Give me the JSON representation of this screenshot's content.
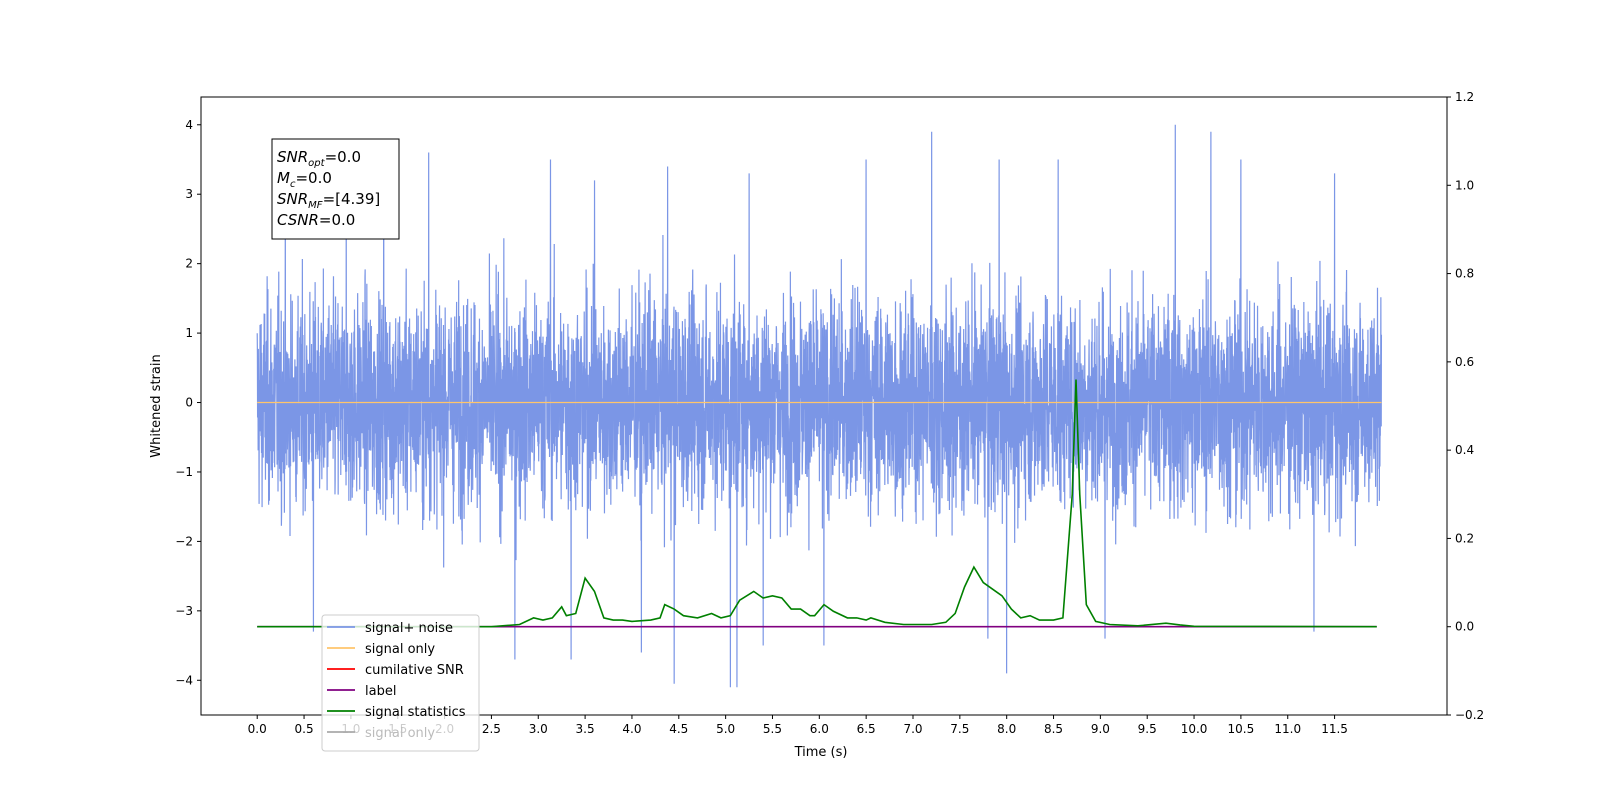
{
  "chart_data": {
    "type": "line",
    "xlabel": "Time (s)",
    "ylabel": "Whitened strain",
    "xlim": [
      -0.6,
      12.7
    ],
    "ylim": [
      -4.5,
      4.4
    ],
    "y2lim": [
      -0.2,
      1.2
    ],
    "x_ticks": [
      0.0,
      0.5,
      1.0,
      1.5,
      2.0,
      2.5,
      3.0,
      3.5,
      4.0,
      4.5,
      5.0,
      5.5,
      6.0,
      6.5,
      7.0,
      7.5,
      8.0,
      8.5,
      9.0,
      9.5,
      10.0,
      10.5,
      11.0,
      11.5
    ],
    "x_tick_labels": [
      "0.0",
      "0.5",
      "1.0",
      "1.5",
      "2.0",
      "2.5",
      "3.0",
      "3.5",
      "4.0",
      "4.5",
      "5.0",
      "5.5",
      "6.0",
      "6.5",
      "7.0",
      "7.5",
      "8.0",
      "8.5",
      "9.0",
      "9.5",
      "10.0",
      "10.5",
      "11.0",
      "11.5"
    ],
    "y_ticks": [
      4,
      3,
      2,
      1,
      0,
      -1,
      -2,
      -3,
      -4
    ],
    "y_tick_labels": [
      "4",
      "3",
      "2",
      "1",
      "0",
      "−1",
      "−2",
      "−3",
      "−4"
    ],
    "y2_ticks": [
      1.2,
      1.0,
      0.8,
      0.6,
      0.4,
      0.2,
      0.0,
      -0.2
    ],
    "y2_tick_labels": [
      "1.2",
      "1.0",
      "0.8",
      "0.6",
      "0.4",
      "0.2",
      "0.0",
      "−0.2"
    ],
    "grid": false,
    "legend_position": "lower-left",
    "annotation": [
      {
        "main": "SNR",
        "sub": "opt",
        "rest": "=0.0"
      },
      {
        "main": "M",
        "sub": "c",
        "rest": "=0.0"
      },
      {
        "main": "SNR",
        "sub": "MF",
        "rest": "=[4.39]"
      },
      {
        "main": "CSNR",
        "sub": "",
        "rest": "=0.0"
      }
    ],
    "series": [
      {
        "name": "signal+ noise",
        "axis": "left",
        "color": "#7b96e6",
        "kind": "noise",
        "x_range": [
          0.0,
          12.0
        ],
        "envelope_typical": 2.8,
        "peaks": [
          {
            "x": 0.3,
            "y": 2.9
          },
          {
            "x": 0.95,
            "y": 3.1
          },
          {
            "x": 1.35,
            "y": 3.6
          },
          {
            "x": 1.83,
            "y": 3.6
          },
          {
            "x": 2.75,
            "y": 3.5
          },
          {
            "x": 3.13,
            "y": 3.5
          },
          {
            "x": 3.6,
            "y": 3.2
          },
          {
            "x": 4.38,
            "y": 3.4
          },
          {
            "x": 5.25,
            "y": 3.3
          },
          {
            "x": 6.5,
            "y": 3.5
          },
          {
            "x": 7.2,
            "y": 3.9
          },
          {
            "x": 7.92,
            "y": 3.5
          },
          {
            "x": 8.55,
            "y": 3.5
          },
          {
            "x": 9.8,
            "y": 4.0
          },
          {
            "x": 10.18,
            "y": 3.9
          },
          {
            "x": 10.5,
            "y": 3.5
          },
          {
            "x": 11.5,
            "y": 3.3
          }
        ],
        "troughs": [
          {
            "x": 0.6,
            "y": -3.3
          },
          {
            "x": 2.75,
            "y": -3.7
          },
          {
            "x": 3.35,
            "y": -3.7
          },
          {
            "x": 4.1,
            "y": -3.6
          },
          {
            "x": 4.45,
            "y": -4.05
          },
          {
            "x": 5.05,
            "y": -4.1
          },
          {
            "x": 5.12,
            "y": -4.1
          },
          {
            "x": 5.4,
            "y": -3.5
          },
          {
            "x": 6.05,
            "y": -3.5
          },
          {
            "x": 7.8,
            "y": -3.4
          },
          {
            "x": 8.0,
            "y": -3.9
          },
          {
            "x": 9.05,
            "y": -3.4
          },
          {
            "x": 11.28,
            "y": -3.3
          }
        ]
      },
      {
        "name": "signal only",
        "axis": "left",
        "color": "#ffc56b",
        "points": [
          [
            0.0,
            0.0
          ],
          [
            12.0,
            0.0
          ]
        ]
      },
      {
        "name": "cumilative SNR",
        "axis": "right",
        "color": "#ff0000",
        "points": []
      },
      {
        "name": "label",
        "axis": "right",
        "color": "#800080",
        "points": [
          [
            0.0,
            0.0
          ],
          [
            11.95,
            0.0
          ]
        ]
      },
      {
        "name": "signal statistics",
        "axis": "right",
        "color": "#008000",
        "points": [
          [
            0.0,
            0.0
          ],
          [
            2.5,
            0.0
          ],
          [
            2.8,
            0.005
          ],
          [
            2.95,
            0.02
          ],
          [
            3.05,
            0.015
          ],
          [
            3.15,
            0.02
          ],
          [
            3.25,
            0.045
          ],
          [
            3.3,
            0.025
          ],
          [
            3.4,
            0.03
          ],
          [
            3.5,
            0.11
          ],
          [
            3.6,
            0.08
          ],
          [
            3.7,
            0.02
          ],
          [
            3.8,
            0.015
          ],
          [
            3.9,
            0.015
          ],
          [
            4.0,
            0.012
          ],
          [
            4.2,
            0.015
          ],
          [
            4.3,
            0.02
          ],
          [
            4.35,
            0.05
          ],
          [
            4.45,
            0.04
          ],
          [
            4.55,
            0.025
          ],
          [
            4.7,
            0.02
          ],
          [
            4.85,
            0.03
          ],
          [
            4.95,
            0.02
          ],
          [
            5.05,
            0.025
          ],
          [
            5.15,
            0.06
          ],
          [
            5.3,
            0.08
          ],
          [
            5.4,
            0.065
          ],
          [
            5.5,
            0.07
          ],
          [
            5.6,
            0.065
          ],
          [
            5.7,
            0.04
          ],
          [
            5.8,
            0.04
          ],
          [
            5.9,
            0.025
          ],
          [
            5.95,
            0.025
          ],
          [
            6.05,
            0.05
          ],
          [
            6.15,
            0.035
          ],
          [
            6.3,
            0.02
          ],
          [
            6.4,
            0.02
          ],
          [
            6.5,
            0.015
          ],
          [
            6.55,
            0.02
          ],
          [
            6.7,
            0.01
          ],
          [
            6.9,
            0.005
          ],
          [
            7.2,
            0.005
          ],
          [
            7.35,
            0.01
          ],
          [
            7.45,
            0.03
          ],
          [
            7.55,
            0.09
          ],
          [
            7.65,
            0.135
          ],
          [
            7.75,
            0.1
          ],
          [
            7.85,
            0.085
          ],
          [
            7.95,
            0.07
          ],
          [
            8.05,
            0.04
          ],
          [
            8.15,
            0.02
          ],
          [
            8.25,
            0.025
          ],
          [
            8.35,
            0.015
          ],
          [
            8.5,
            0.015
          ],
          [
            8.6,
            0.02
          ],
          [
            8.7,
            0.3
          ],
          [
            8.74,
            0.56
          ],
          [
            8.78,
            0.3
          ],
          [
            8.85,
            0.05
          ],
          [
            8.95,
            0.012
          ],
          [
            9.1,
            0.005
          ],
          [
            9.4,
            0.002
          ],
          [
            9.7,
            0.008
          ],
          [
            9.85,
            0.004
          ],
          [
            10.0,
            0.001
          ],
          [
            11.95,
            0.0
          ]
        ]
      },
      {
        "name": "signal only",
        "axis": "left",
        "color": "#aaaaaa",
        "points": []
      }
    ]
  }
}
